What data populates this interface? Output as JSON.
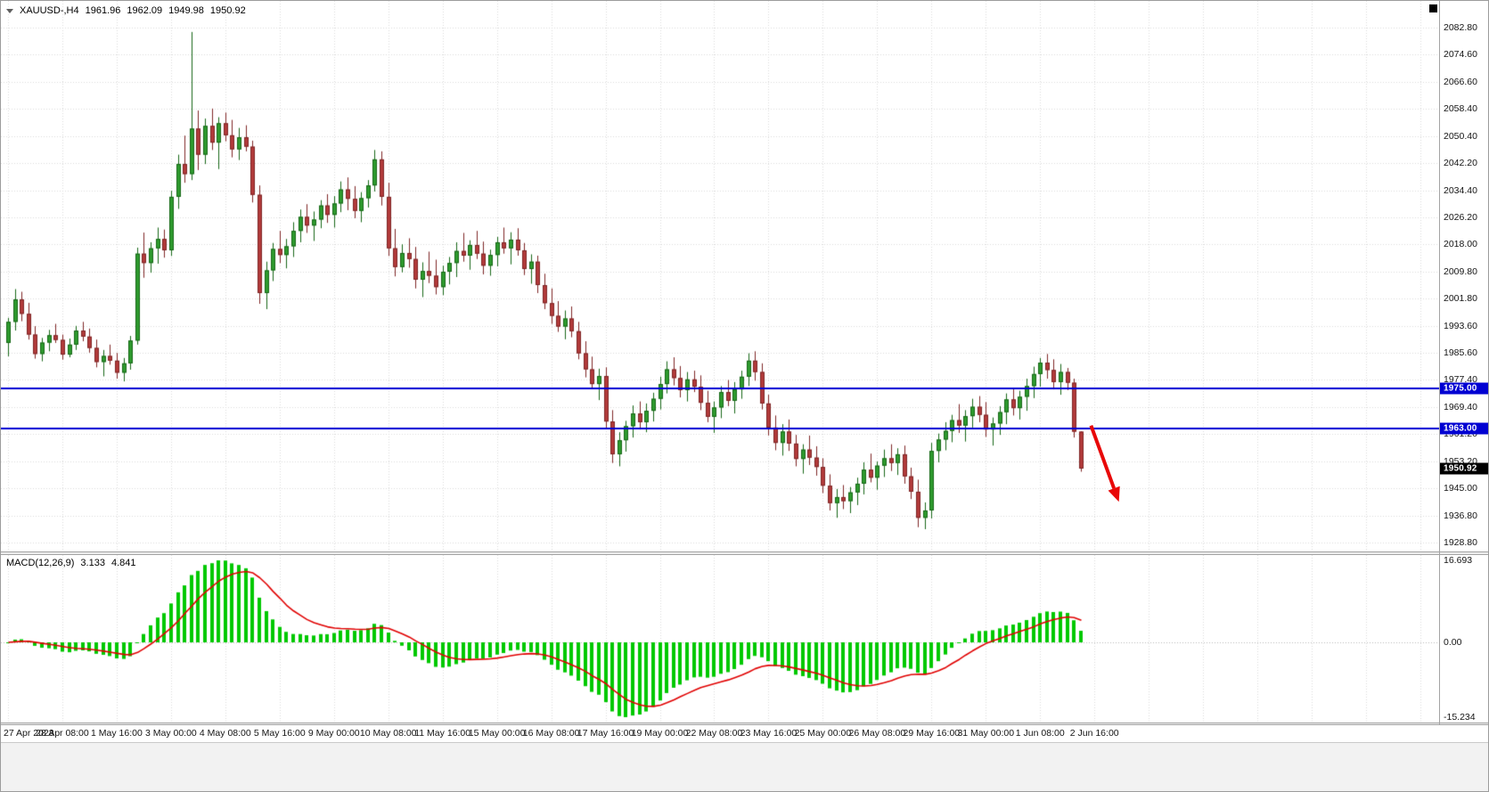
{
  "header": {
    "symbol": "XAUUSD-,H4",
    "open": "1961.96",
    "high": "1962.09",
    "low": "1949.98",
    "close": "1950.92"
  },
  "chart_data": {
    "type": "candlestick",
    "symbol": "XAUUSD",
    "timeframe": "H4",
    "price_range": [
      1928.8,
      2082.8
    ],
    "price_axis": {
      "labels": [
        "2082.80",
        "2074.60",
        "2066.60",
        "2058.40",
        "2050.40",
        "2042.20",
        "2034.40",
        "2026.20",
        "2018.00",
        "2009.80",
        "2001.80",
        "1993.60",
        "1985.60",
        "1977.40",
        "1969.40",
        "1961.20",
        "1953.20",
        "1945.00",
        "1936.80",
        "1928.80"
      ]
    },
    "time_axis": {
      "bars_per_tick": 8,
      "labels": [
        "27 Apr 2023",
        "28 Apr 08:00",
        "1 May 16:00",
        "3 May 00:00",
        "4 May 08:00",
        "5 May 16:00",
        "9 May 00:00",
        "10 May 08:00",
        "11 May 16:00",
        "15 May 00:00",
        "16 May 08:00",
        "17 May 16:00",
        "19 May 00:00",
        "22 May 08:00",
        "23 May 16:00",
        "25 May 00:00",
        "26 May 08:00",
        "29 May 16:00",
        "31 May 00:00",
        "1 Jun 08:00",
        "2 Jun 16:00"
      ]
    },
    "macd_axis": {
      "top": "16.693",
      "zero": "0.00",
      "bottom": "-15.234",
      "range": [
        -15.234,
        16.693
      ]
    },
    "indicator": {
      "name": "MACD",
      "params": "12,26,9",
      "label": "MACD(12,26,9)",
      "macd_value": "3.133",
      "signal_value": "4.841"
    },
    "horizontal_lines": [
      {
        "price": 1975.0,
        "color": "#0000d2"
      },
      {
        "price": 1963.0,
        "color": "#0000d2"
      }
    ],
    "price_badges": [
      {
        "text": "1975.00",
        "price": 1975.0,
        "color": "#0000d2",
        "text_color": "#ffffff"
      },
      {
        "text": "1963.00",
        "price": 1963.0,
        "color": "#0000d2",
        "text_color": "#ffffff"
      },
      {
        "text": "1950.92",
        "price": 1950.92,
        "color": "#000000",
        "text_color": "#ffffff"
      }
    ],
    "annotations": [
      {
        "type": "arrow",
        "color": "#e80808",
        "from": {
          "bar": 159.5,
          "price": 1963.8
        },
        "to": {
          "bar": 163.6,
          "price": 1941.0
        }
      }
    ],
    "colors": {
      "bull": "#2e9b2e",
      "bear": "#b23a3a",
      "bull_edge": "#156615",
      "bear_edge": "#7d2424",
      "grid": "#d9d9d9",
      "macd_histogram": "#00c800",
      "macd_signal": "#e00000"
    },
    "ohlc": [
      [
        1988.5,
        1996.0,
        1984.5,
        1994.8
      ],
      [
        1994.8,
        2004.6,
        1992.2,
        2001.5
      ],
      [
        2001.5,
        2003.8,
        1995.0,
        1997.2
      ],
      [
        1997.2,
        2000.5,
        1989.5,
        1991.0
      ],
      [
        1991.0,
        1993.5,
        1983.8,
        1985.2
      ],
      [
        1985.2,
        1990.0,
        1983.0,
        1988.6
      ],
      [
        1988.6,
        1992.4,
        1986.0,
        1990.8
      ],
      [
        1990.8,
        1994.2,
        1988.5,
        1989.4
      ],
      [
        1989.4,
        1991.0,
        1983.5,
        1985.0
      ],
      [
        1985.0,
        1989.8,
        1984.2,
        1988.0
      ],
      [
        1988.0,
        1993.6,
        1986.4,
        1992.2
      ],
      [
        1992.2,
        1994.8,
        1989.0,
        1990.4
      ],
      [
        1990.4,
        1992.8,
        1985.6,
        1987.0
      ],
      [
        1987.0,
        1989.5,
        1981.2,
        1982.8
      ],
      [
        1982.8,
        1986.4,
        1978.5,
        1984.6
      ],
      [
        1984.6,
        1988.0,
        1982.0,
        1983.2
      ],
      [
        1983.2,
        1985.5,
        1977.8,
        1979.6
      ],
      [
        1979.6,
        1984.0,
        1977.0,
        1982.4
      ],
      [
        1982.4,
        1990.6,
        1980.5,
        1989.2
      ],
      [
        1989.2,
        2017.0,
        1988.0,
        2015.2
      ],
      [
        2015.2,
        2021.5,
        2008.0,
        2012.4
      ],
      [
        2012.4,
        2018.6,
        2009.5,
        2016.8
      ],
      [
        2016.8,
        2023.0,
        2012.2,
        2019.6
      ],
      [
        2019.6,
        2022.4,
        2014.0,
        2016.2
      ],
      [
        2016.2,
        2034.0,
        2014.5,
        2032.2
      ],
      [
        2032.2,
        2044.8,
        2028.6,
        2042.0
      ],
      [
        2042.0,
        2050.5,
        2036.4,
        2039.0
      ],
      [
        2039.0,
        2081.5,
        2037.2,
        2052.6
      ],
      [
        2052.6,
        2058.0,
        2040.2,
        2044.8
      ],
      [
        2044.8,
        2055.6,
        2042.0,
        2053.4
      ],
      [
        2053.4,
        2058.6,
        2046.2,
        2048.4
      ],
      [
        2048.4,
        2056.0,
        2040.5,
        2054.2
      ],
      [
        2054.2,
        2057.4,
        2048.8,
        2050.6
      ],
      [
        2050.6,
        2055.2,
        2044.0,
        2046.4
      ],
      [
        2046.4,
        2052.8,
        2043.2,
        2050.0
      ],
      [
        2050.0,
        2053.6,
        2045.8,
        2047.2
      ],
      [
        2047.2,
        2049.0,
        2030.5,
        2032.8
      ],
      [
        2032.8,
        2035.6,
        2000.2,
        2003.4
      ],
      [
        2003.4,
        2012.8,
        1998.6,
        2010.2
      ],
      [
        2010.2,
        2018.4,
        2007.0,
        2016.6
      ],
      [
        2016.6,
        2022.0,
        2012.4,
        2014.8
      ],
      [
        2014.8,
        2019.6,
        2010.8,
        2017.4
      ],
      [
        2017.4,
        2024.6,
        2014.2,
        2022.0
      ],
      [
        2022.0,
        2028.4,
        2018.6,
        2026.2
      ],
      [
        2026.2,
        2030.0,
        2021.4,
        2023.6
      ],
      [
        2023.6,
        2027.8,
        2019.0,
        2025.4
      ],
      [
        2025.4,
        2031.2,
        2022.8,
        2029.6
      ],
      [
        2029.6,
        2033.0,
        2024.4,
        2026.8
      ],
      [
        2026.8,
        2032.4,
        2023.0,
        2030.2
      ],
      [
        2030.2,
        2036.8,
        2027.6,
        2034.4
      ],
      [
        2034.4,
        2038.0,
        2028.2,
        2031.6
      ],
      [
        2031.6,
        2035.4,
        2025.8,
        2028.0
      ],
      [
        2028.0,
        2033.6,
        2024.6,
        2031.8
      ],
      [
        2031.8,
        2037.2,
        2029.0,
        2035.6
      ],
      [
        2035.6,
        2046.2,
        2033.8,
        2043.4
      ],
      [
        2043.4,
        2045.8,
        2029.6,
        2032.2
      ],
      [
        2032.2,
        2036.4,
        2014.5,
        2016.8
      ],
      [
        2016.8,
        2022.6,
        2008.4,
        2011.2
      ],
      [
        2011.2,
        2018.0,
        2009.6,
        2015.4
      ],
      [
        2015.4,
        2019.8,
        2011.0,
        2013.6
      ],
      [
        2013.6,
        2017.2,
        2004.8,
        2007.4
      ],
      [
        2007.4,
        2012.6,
        2002.2,
        2010.0
      ],
      [
        2010.0,
        2015.8,
        2006.4,
        2008.6
      ],
      [
        2008.6,
        2013.4,
        2003.0,
        2005.2
      ],
      [
        2005.2,
        2011.6,
        2002.8,
        2009.8
      ],
      [
        2009.8,
        2014.2,
        2006.0,
        2012.4
      ],
      [
        2012.4,
        2018.6,
        2008.2,
        2016.0
      ],
      [
        2016.0,
        2021.4,
        2012.8,
        2014.6
      ],
      [
        2014.6,
        2019.2,
        2010.4,
        2017.8
      ],
      [
        2017.8,
        2022.0,
        2013.6,
        2015.2
      ],
      [
        2015.2,
        2018.8,
        2009.0,
        2011.6
      ],
      [
        2011.6,
        2016.4,
        2008.6,
        2014.8
      ],
      [
        2014.8,
        2020.2,
        2011.4,
        2018.6
      ],
      [
        2018.6,
        2023.0,
        2015.2,
        2016.8
      ],
      [
        2016.8,
        2021.6,
        2012.0,
        2019.4
      ],
      [
        2019.4,
        2022.8,
        2014.6,
        2016.2
      ],
      [
        2016.2,
        2018.4,
        2008.8,
        2010.6
      ],
      [
        2010.6,
        2015.0,
        2006.2,
        2012.8
      ],
      [
        2012.8,
        2014.6,
        2003.4,
        2005.8
      ],
      [
        2005.8,
        2009.2,
        1998.6,
        2000.4
      ],
      [
        2000.4,
        2004.8,
        1994.2,
        1996.6
      ],
      [
        1996.6,
        2001.0,
        1991.8,
        1993.4
      ],
      [
        1993.4,
        1998.2,
        1989.6,
        1995.8
      ],
      [
        1995.8,
        1999.4,
        1990.2,
        1992.0
      ],
      [
        1992.0,
        1994.8,
        1983.6,
        1985.4
      ],
      [
        1985.4,
        1989.0,
        1978.2,
        1980.6
      ],
      [
        1980.6,
        1984.4,
        1974.8,
        1976.2
      ],
      [
        1976.2,
        1980.8,
        1971.4,
        1978.6
      ],
      [
        1978.6,
        1981.2,
        1962.8,
        1965.0
      ],
      [
        1965.0,
        1968.4,
        1952.6,
        1955.2
      ],
      [
        1955.2,
        1961.8,
        1951.6,
        1959.4
      ],
      [
        1959.4,
        1965.2,
        1956.0,
        1963.6
      ],
      [
        1963.6,
        1969.8,
        1960.2,
        1967.4
      ],
      [
        1967.4,
        1971.0,
        1962.6,
        1964.8
      ],
      [
        1964.8,
        1970.4,
        1961.8,
        1968.2
      ],
      [
        1968.2,
        1973.6,
        1965.0,
        1971.8
      ],
      [
        1971.8,
        1978.4,
        1968.6,
        1976.2
      ],
      [
        1976.2,
        1983.0,
        1973.4,
        1980.6
      ],
      [
        1980.6,
        1984.2,
        1975.8,
        1978.0
      ],
      [
        1978.0,
        1981.6,
        1972.2,
        1974.4
      ],
      [
        1974.4,
        1979.8,
        1971.0,
        1977.6
      ],
      [
        1977.6,
        1980.2,
        1973.8,
        1975.4
      ],
      [
        1975.4,
        1978.8,
        1968.4,
        1970.6
      ],
      [
        1970.6,
        1974.2,
        1964.8,
        1966.4
      ],
      [
        1966.4,
        1971.0,
        1961.6,
        1969.2
      ],
      [
        1969.2,
        1975.6,
        1966.0,
        1973.8
      ],
      [
        1973.8,
        1977.4,
        1969.6,
        1971.2
      ],
      [
        1971.2,
        1976.8,
        1967.4,
        1974.6
      ],
      [
        1974.6,
        1980.2,
        1971.8,
        1978.4
      ],
      [
        1978.4,
        1985.4,
        1975.6,
        1983.2
      ],
      [
        1983.2,
        1986.0,
        1977.2,
        1979.8
      ],
      [
        1979.8,
        1982.4,
        1968.6,
        1970.4
      ],
      [
        1970.4,
        1973.0,
        1960.8,
        1963.2
      ],
      [
        1963.2,
        1966.8,
        1956.4,
        1958.6
      ],
      [
        1958.6,
        1964.2,
        1954.8,
        1962.0
      ],
      [
        1962.0,
        1965.6,
        1956.2,
        1958.4
      ],
      [
        1958.4,
        1961.0,
        1951.6,
        1953.8
      ],
      [
        1953.8,
        1958.2,
        1949.4,
        1956.6
      ],
      [
        1956.6,
        1960.8,
        1952.0,
        1954.2
      ],
      [
        1954.2,
        1957.6,
        1948.8,
        1951.4
      ],
      [
        1951.4,
        1954.0,
        1943.6,
        1945.8
      ],
      [
        1945.8,
        1949.2,
        1938.4,
        1940.6
      ],
      [
        1940.6,
        1944.8,
        1936.2,
        1942.4
      ],
      [
        1942.4,
        1946.0,
        1938.8,
        1941.2
      ],
      [
        1941.2,
        1945.4,
        1937.6,
        1943.8
      ],
      [
        1943.8,
        1948.2,
        1940.0,
        1946.4
      ],
      [
        1946.4,
        1952.8,
        1943.2,
        1950.6
      ],
      [
        1950.6,
        1955.4,
        1946.8,
        1948.2
      ],
      [
        1948.2,
        1953.0,
        1944.6,
        1951.8
      ],
      [
        1951.8,
        1956.6,
        1948.4,
        1954.0
      ],
      [
        1954.0,
        1958.2,
        1950.2,
        1952.6
      ],
      [
        1952.6,
        1957.0,
        1949.0,
        1955.2
      ],
      [
        1955.2,
        1957.8,
        1946.4,
        1948.6
      ],
      [
        1948.6,
        1951.2,
        1941.8,
        1944.0
      ],
      [
        1944.0,
        1947.6,
        1933.4,
        1936.2
      ],
      [
        1936.2,
        1940.8,
        1932.8,
        1938.4
      ],
      [
        1938.4,
        1958.6,
        1936.0,
        1956.2
      ],
      [
        1956.2,
        1961.4,
        1952.8,
        1959.6
      ],
      [
        1959.6,
        1964.8,
        1956.4,
        1962.2
      ],
      [
        1962.2,
        1967.0,
        1958.8,
        1965.4
      ],
      [
        1965.4,
        1970.2,
        1961.6,
        1963.8
      ],
      [
        1963.8,
        1968.4,
        1959.0,
        1966.6
      ],
      [
        1966.6,
        1971.8,
        1963.2,
        1969.4
      ],
      [
        1969.4,
        1972.6,
        1964.8,
        1967.0
      ],
      [
        1967.0,
        1970.8,
        1960.4,
        1962.6
      ],
      [
        1962.6,
        1966.2,
        1957.8,
        1964.4
      ],
      [
        1964.4,
        1969.6,
        1961.0,
        1967.8
      ],
      [
        1967.8,
        1973.4,
        1964.2,
        1971.6
      ],
      [
        1971.6,
        1975.0,
        1966.8,
        1969.0
      ],
      [
        1969.0,
        1974.2,
        1965.6,
        1972.4
      ],
      [
        1972.4,
        1977.8,
        1968.2,
        1975.6
      ],
      [
        1975.6,
        1981.4,
        1972.0,
        1979.2
      ],
      [
        1979.2,
        1984.0,
        1975.4,
        1982.6
      ],
      [
        1982.6,
        1985.2,
        1977.8,
        1980.4
      ],
      [
        1980.4,
        1983.6,
        1974.6,
        1976.8
      ],
      [
        1976.8,
        1982.2,
        1973.0,
        1979.8
      ],
      [
        1979.8,
        1981.0,
        1974.4,
        1976.6
      ],
      [
        1976.6,
        1977.8,
        1960.2,
        1961.96
      ],
      [
        1961.96,
        1962.09,
        1949.98,
        1950.92
      ]
    ]
  }
}
